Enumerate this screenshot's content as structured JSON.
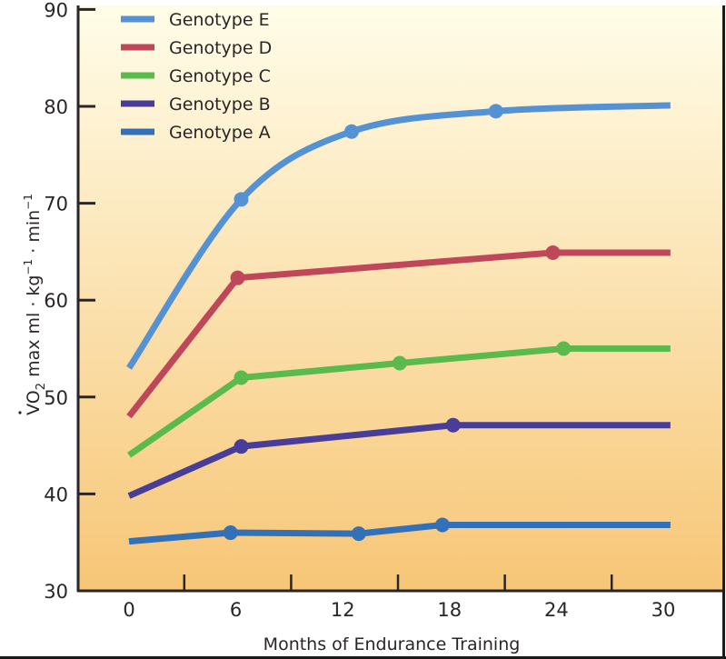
{
  "chart_data": {
    "type": "line",
    "title": "",
    "xlabel": "Months of Endurance Training",
    "ylabel": {
      "main": "VO",
      "sub": "2",
      "rest": " max ml · kg",
      "sup1": "−1",
      "mid": " · min",
      "sup2": "−1",
      "full": "V̇O2 max ml · kg−1 · min−1"
    },
    "xlim": [
      -2.4,
      33.1
    ],
    "ylim": [
      30,
      90
    ],
    "xticks": [
      0,
      6,
      12,
      18,
      24,
      30
    ],
    "xtick_labels": [
      "0",
      "6",
      "12",
      "18",
      "24",
      "30"
    ],
    "xtick_marks": [
      3,
      9,
      15,
      21,
      27
    ],
    "yticks": [
      30,
      40,
      50,
      60,
      70,
      80,
      90
    ],
    "ytick_labels": [
      "30",
      "40",
      "50",
      "60",
      "70",
      "80",
      "90"
    ],
    "grid": false,
    "legend_position": "top-left",
    "background_gradient": [
      "#FFFDE9",
      "#F7C676"
    ],
    "series": [
      {
        "name": "Genotype E",
        "color": "#5592D3",
        "smooth": true,
        "x": [
          0,
          6.3,
          12.5,
          20.6,
          30.4
        ],
        "y": [
          53.0,
          70.4,
          77.4,
          79.5,
          80.1
        ],
        "markers": [
          false,
          true,
          true,
          true,
          false
        ]
      },
      {
        "name": "Genotype D",
        "color": "#C0475A",
        "smooth": false,
        "x": [
          0,
          6.1,
          23.8,
          30.4
        ],
        "y": [
          48.0,
          62.3,
          64.9,
          64.9
        ],
        "markers": [
          false,
          true,
          true,
          false
        ]
      },
      {
        "name": "Genotype C",
        "color": "#5BBA4C",
        "smooth": false,
        "x": [
          0,
          6.3,
          15.2,
          24.4,
          30.4
        ],
        "y": [
          44.0,
          52.0,
          53.5,
          55.0,
          55.0
        ],
        "markers": [
          false,
          true,
          true,
          true,
          false
        ]
      },
      {
        "name": "Genotype B",
        "color": "#483D98",
        "smooth": false,
        "x": [
          0,
          6.3,
          18.2,
          30.4
        ],
        "y": [
          39.8,
          44.9,
          47.1,
          47.1
        ],
        "markers": [
          false,
          true,
          true,
          false
        ]
      },
      {
        "name": "Genotype A",
        "color": "#3271BA",
        "smooth": false,
        "x": [
          0,
          5.7,
          12.9,
          17.6,
          30.4
        ],
        "y": [
          35.1,
          36.0,
          35.9,
          36.8,
          36.8
        ],
        "markers": [
          false,
          true,
          true,
          true,
          false
        ]
      }
    ]
  }
}
